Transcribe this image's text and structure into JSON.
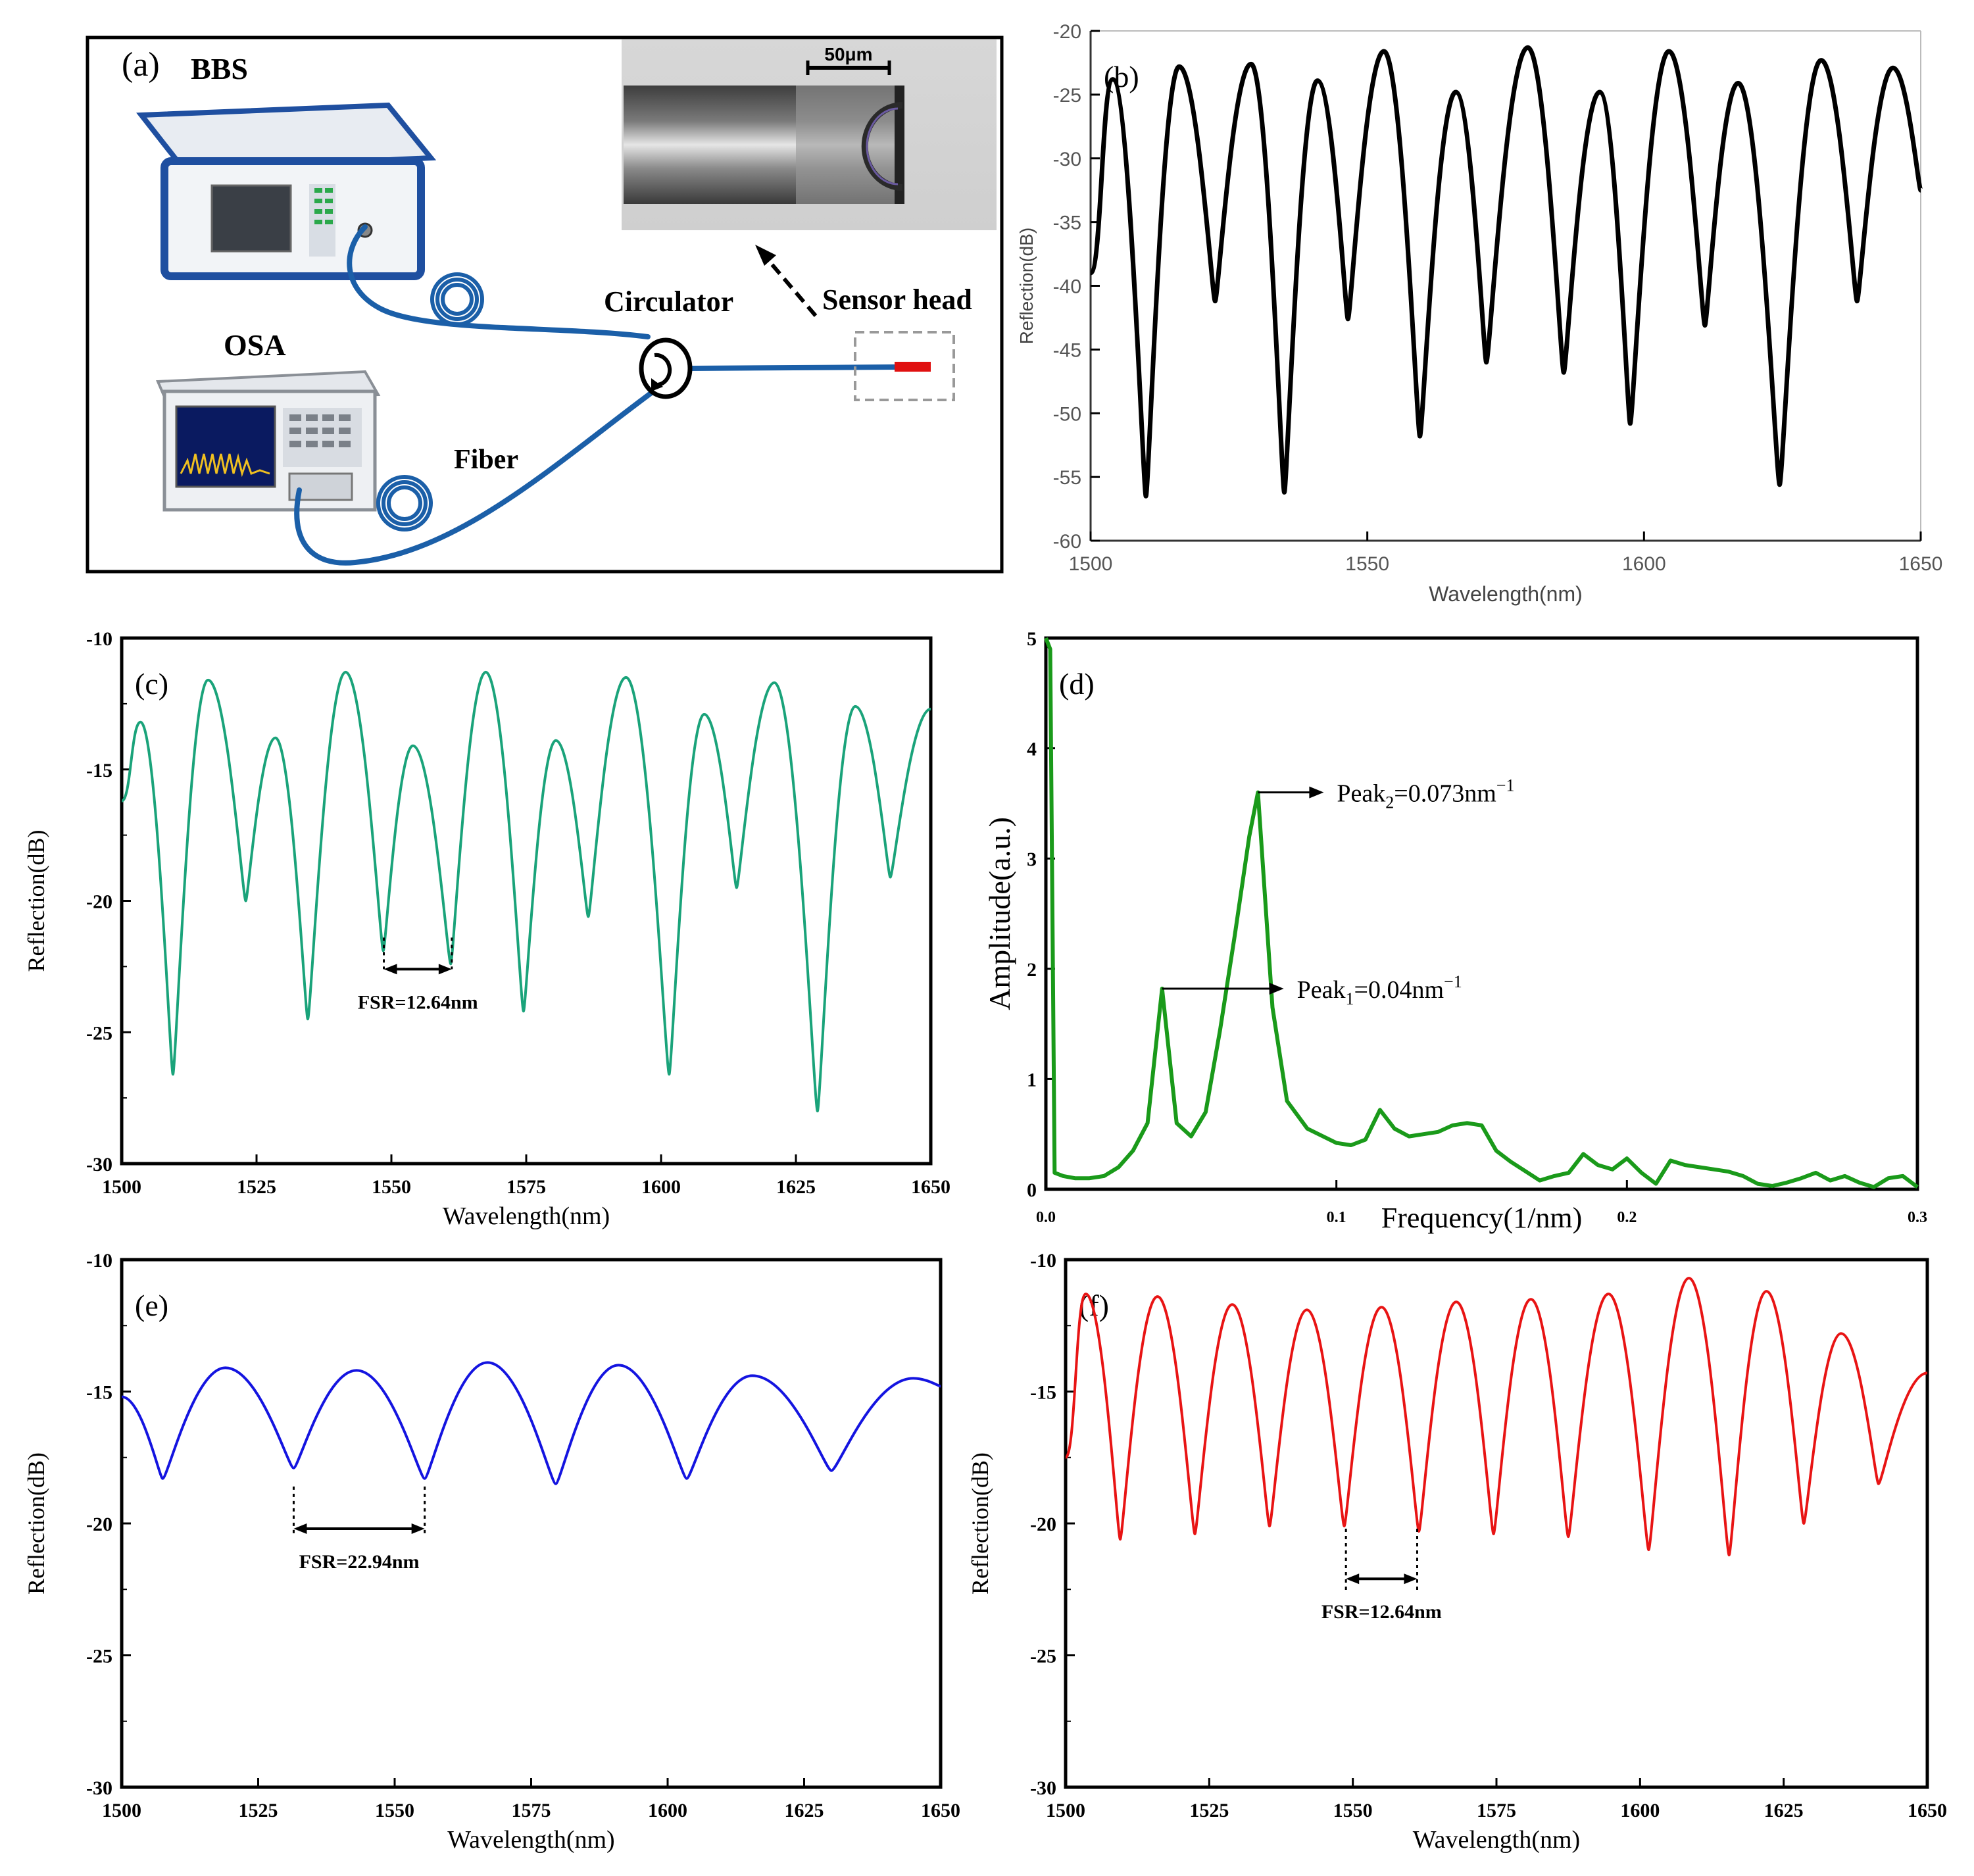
{
  "panel_a": {
    "label": "(a)",
    "bbs_label": "BBS",
    "osa_label": "OSA",
    "circulator_label": "Circulator",
    "sensor_label": "Sensor head",
    "fiber_label": "Fiber",
    "scale_label": "50μm",
    "colors": {
      "fiber": "#1b5fa8",
      "device": "#1f4fa0",
      "sensor": "#e01010"
    }
  },
  "chart_data": [
    {
      "id": "b",
      "panel_label": "(b)",
      "type": "line",
      "color": "#000000",
      "xlabel": "Wavelength(nm)",
      "ylabel": "Reflection(dB)",
      "xlim": [
        1500,
        1650
      ],
      "ylim": [
        -60,
        -20
      ],
      "xticks": [
        1500,
        1550,
        1600,
        1650
      ],
      "yticks": [
        -60,
        -55,
        -50,
        -45,
        -40,
        -35,
        -30,
        -25,
        -20
      ],
      "series": [
        {
          "x": [
            1500,
            1504,
            1510,
            1516,
            1522.5,
            1529,
            1535,
            1541,
            1546.5,
            1553,
            1559.5,
            1566,
            1571.5,
            1579,
            1585.5,
            1592,
            1597.5,
            1604.5,
            1611,
            1617,
            1624.5,
            1632,
            1638.5,
            1645,
            1650
          ],
          "y": [
            -39,
            -23.8,
            -56.5,
            -22.8,
            -41.2,
            -22.6,
            -56.2,
            -23.9,
            -42.6,
            -21.6,
            -51.8,
            -24.8,
            -46.0,
            -21.3,
            -46.8,
            -24.8,
            -50.8,
            -21.6,
            -43.1,
            -24.1,
            -55.6,
            -22.3,
            -41.2,
            -22.9,
            -32.5
          ]
        }
      ]
    },
    {
      "id": "c",
      "panel_label": "(c)",
      "type": "line",
      "color": "#1aa37a",
      "xlabel": "Wavelength(nm)",
      "ylabel": "Reflection(dB)",
      "xlim": [
        1500,
        1650
      ],
      "ylim": [
        -30,
        -10
      ],
      "xticks": [
        1500,
        1525,
        1550,
        1575,
        1600,
        1625,
        1650
      ],
      "yticks": [
        -30,
        -25,
        -20,
        -15,
        -10
      ],
      "annotation": "FSR=12.64nm",
      "fsr_marks": [
        1548.6,
        1561.2
      ],
      "series": [
        {
          "x": [
            1500,
            1503.5,
            1509.5,
            1516,
            1523,
            1528.5,
            1534.5,
            1541.5,
            1548.5,
            1554,
            1561,
            1567.5,
            1574.5,
            1580.5,
            1586.5,
            1593.5,
            1601.5,
            1608,
            1614,
            1621,
            1629,
            1636,
            1642.5,
            1650
          ],
          "y": [
            -16.2,
            -13.2,
            -26.6,
            -11.6,
            -20.0,
            -13.8,
            -24.5,
            -11.3,
            -21.9,
            -14.1,
            -22.4,
            -11.3,
            -24.2,
            -13.9,
            -20.6,
            -11.5,
            -26.6,
            -12.9,
            -19.5,
            -11.7,
            -28.0,
            -12.6,
            -19.1,
            -12.7
          ]
        }
      ]
    },
    {
      "id": "d",
      "panel_label": "(d)",
      "type": "line",
      "color": "#1a9a1a",
      "xlabel": "Frequency(1/nm)",
      "ylabel": "Amplitude(a.u.)",
      "xlim": [
        0,
        0.3
      ],
      "ylim": [
        0,
        5
      ],
      "xticks": [
        0.0,
        0.1,
        0.2,
        0.3
      ],
      "xtick_labels": [
        "0.0",
        "0.1",
        "0.2",
        "0.3"
      ],
      "yticks": [
        0,
        1,
        2,
        3,
        4,
        5
      ],
      "annotations": [
        {
          "text": "Peak",
          "sub": "1",
          "rest": "=0.04nm",
          "sup": "−1",
          "x": 0.04,
          "y": 1.82
        },
        {
          "text": "Peak",
          "sub": "2",
          "rest": "=0.073nm",
          "sup": "−1",
          "x": 0.073,
          "y": 3.6
        }
      ],
      "series": [
        {
          "x": [
            0.0,
            0.0015,
            0.003,
            0.006,
            0.01,
            0.015,
            0.02,
            0.025,
            0.03,
            0.035,
            0.04,
            0.045,
            0.05,
            0.055,
            0.06,
            0.065,
            0.07,
            0.073,
            0.078,
            0.083,
            0.09,
            0.1,
            0.105,
            0.11,
            0.115,
            0.12,
            0.125,
            0.13,
            0.135,
            0.14,
            0.145,
            0.15,
            0.155,
            0.16,
            0.17,
            0.175,
            0.18,
            0.185,
            0.19,
            0.195,
            0.2,
            0.205,
            0.21,
            0.215,
            0.22,
            0.23,
            0.235,
            0.24,
            0.245,
            0.25,
            0.255,
            0.26,
            0.265,
            0.27,
            0.275,
            0.28,
            0.285,
            0.29,
            0.295,
            0.3
          ],
          "y": [
            5.0,
            4.9,
            0.15,
            0.12,
            0.1,
            0.1,
            0.12,
            0.2,
            0.35,
            0.6,
            1.82,
            0.6,
            0.48,
            0.7,
            1.45,
            2.3,
            3.2,
            3.6,
            1.65,
            0.8,
            0.55,
            0.42,
            0.4,
            0.45,
            0.72,
            0.55,
            0.48,
            0.5,
            0.52,
            0.58,
            0.6,
            0.58,
            0.35,
            0.25,
            0.08,
            0.12,
            0.15,
            0.32,
            0.22,
            0.18,
            0.28,
            0.15,
            0.05,
            0.26,
            0.22,
            0.18,
            0.16,
            0.12,
            0.05,
            0.03,
            0.06,
            0.1,
            0.15,
            0.08,
            0.12,
            0.06,
            0.02,
            0.1,
            0.12,
            0.02
          ]
        }
      ]
    },
    {
      "id": "e",
      "panel_label": "(e)",
      "type": "line",
      "color": "#1414e0",
      "xlabel": "Wavelength(nm)",
      "ylabel": "Reflection(dB)",
      "xlim": [
        1500,
        1650
      ],
      "ylim": [
        -30,
        -10
      ],
      "xticks": [
        1500,
        1525,
        1550,
        1575,
        1600,
        1625,
        1650
      ],
      "yticks": [
        -30,
        -25,
        -20,
        -15,
        -10
      ],
      "annotation": "FSR=22.94nm",
      "fsr_marks": [
        1531.5,
        1555.5
      ],
      "series": [
        {
          "x": [
            1500,
            1507.5,
            1519,
            1531.5,
            1543,
            1555.5,
            1567,
            1579.5,
            1591,
            1603.5,
            1615.5,
            1630,
            1645,
            1650
          ],
          "y": [
            -15.2,
            -18.3,
            -14.1,
            -17.9,
            -14.2,
            -18.3,
            -13.9,
            -18.5,
            -14.0,
            -18.3,
            -14.4,
            -18.0,
            -14.5,
            -14.8
          ]
        }
      ]
    },
    {
      "id": "f",
      "panel_label": "(f)",
      "type": "line",
      "color": "#e81414",
      "xlabel": "Wavelength(nm)",
      "ylabel": "Reflection(dB)",
      "xlim": [
        1500,
        1650
      ],
      "ylim": [
        -30,
        -10
      ],
      "xticks": [
        1500,
        1525,
        1550,
        1575,
        1600,
        1625,
        1650
      ],
      "yticks": [
        -30,
        -25,
        -20,
        -15,
        -10
      ],
      "annotation": "FSR=12.64nm",
      "fsr_marks": [
        1548.8,
        1561.2
      ],
      "series": [
        {
          "x": [
            1500,
            1503.5,
            1509.5,
            1516,
            1522.5,
            1529,
            1535.5,
            1542,
            1548.5,
            1555,
            1561.5,
            1568,
            1574.5,
            1581,
            1587.5,
            1594.5,
            1601.5,
            1608.5,
            1615.5,
            1622,
            1628.5,
            1635,
            1641.5,
            1650
          ],
          "y": [
            -17.5,
            -11.3,
            -20.6,
            -11.4,
            -20.4,
            -11.7,
            -20.1,
            -11.9,
            -20.1,
            -11.8,
            -20.3,
            -11.6,
            -20.4,
            -11.5,
            -20.5,
            -11.3,
            -21.0,
            -10.7,
            -21.2,
            -11.2,
            -20.0,
            -12.8,
            -18.5,
            -14.3
          ]
        }
      ]
    }
  ]
}
